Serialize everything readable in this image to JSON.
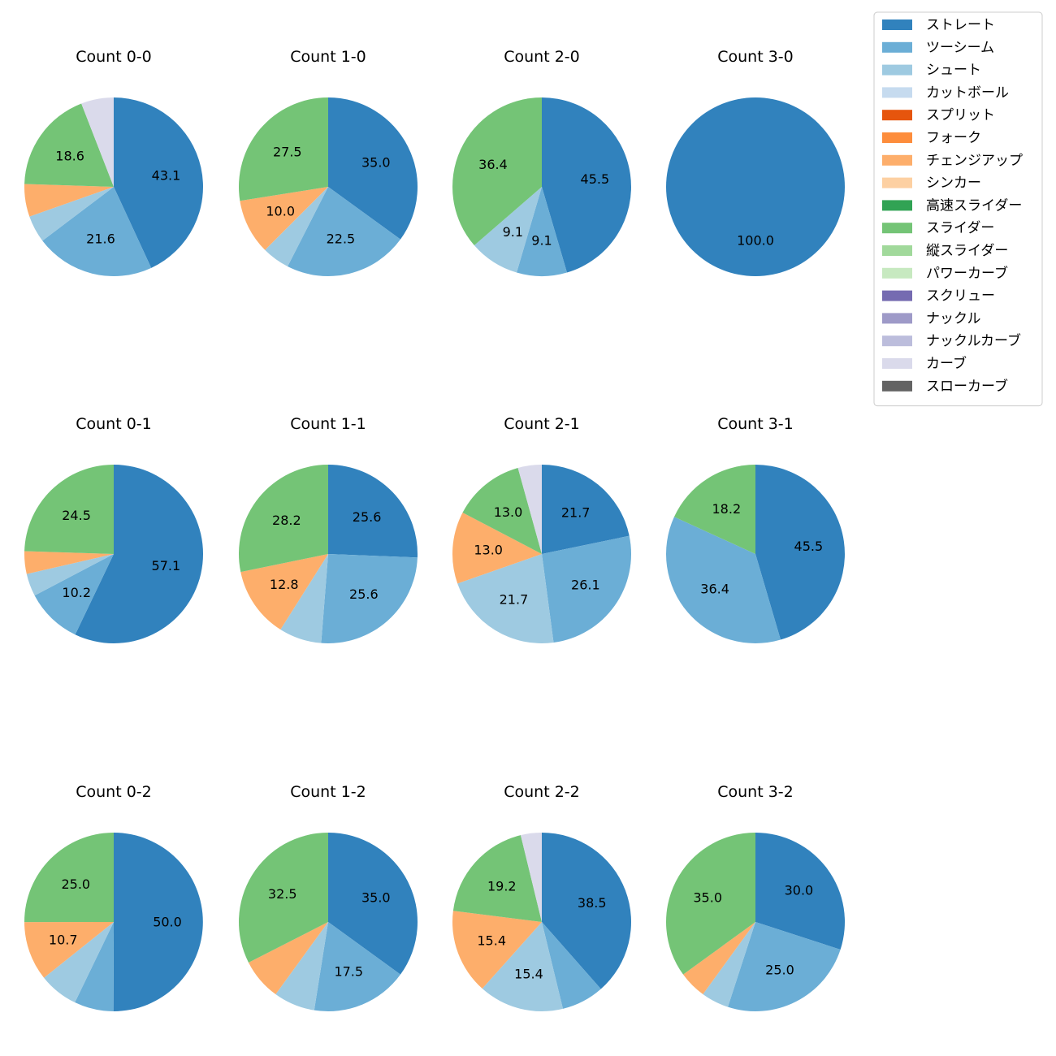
{
  "chart_data": {
    "type": "pie",
    "title": "",
    "legend": {
      "placement": "top-right",
      "items": [
        {
          "name": "ストレート",
          "color": "#3182bd"
        },
        {
          "name": "ツーシーム",
          "color": "#6baed6"
        },
        {
          "name": "シュート",
          "color": "#9ecae1"
        },
        {
          "name": "カットボール",
          "color": "#c6dbef"
        },
        {
          "name": "スプリット",
          "color": "#e6550d"
        },
        {
          "name": "フォーク",
          "color": "#fd8d3c"
        },
        {
          "name": "チェンジアップ",
          "color": "#fdae6b"
        },
        {
          "name": "シンカー",
          "color": "#fdd0a2"
        },
        {
          "name": "高速スライダー",
          "color": "#31a354"
        },
        {
          "name": "スライダー",
          "color": "#74c476"
        },
        {
          "name": "縦スライダー",
          "color": "#a1d99b"
        },
        {
          "name": "パワーカーブ",
          "color": "#c7e9c0"
        },
        {
          "name": "スクリュー",
          "color": "#756bb1"
        },
        {
          "name": "ナックル",
          "color": "#9e9ac8"
        },
        {
          "name": "ナックルカーブ",
          "color": "#bcbddc"
        },
        {
          "name": "カーブ",
          "color": "#dadaeb"
        },
        {
          "name": "スローカーブ",
          "color": "#636363"
        }
      ]
    },
    "pies": [
      {
        "title": "Count 0-0",
        "slices": [
          {
            "category": "ストレート",
            "value": 43.1,
            "label": "43.1"
          },
          {
            "category": "ツーシーム",
            "value": 21.6,
            "label": "21.6"
          },
          {
            "category": "シュート",
            "value": 4.9
          },
          {
            "category": "チェンジアップ",
            "value": 5.9
          },
          {
            "category": "スライダー",
            "value": 18.6,
            "label": "18.6"
          },
          {
            "category": "カーブ",
            "value": 5.9
          }
        ]
      },
      {
        "title": "Count 1-0",
        "slices": [
          {
            "category": "ストレート",
            "value": 35.0,
            "label": "35.0"
          },
          {
            "category": "ツーシーム",
            "value": 22.5,
            "label": "22.5"
          },
          {
            "category": "シュート",
            "value": 5.0
          },
          {
            "category": "チェンジアップ",
            "value": 10.0,
            "label": "10.0"
          },
          {
            "category": "スライダー",
            "value": 27.5,
            "label": "27.5"
          }
        ]
      },
      {
        "title": "Count 2-0",
        "slices": [
          {
            "category": "ストレート",
            "value": 45.5,
            "label": "45.5"
          },
          {
            "category": "ツーシーム",
            "value": 9.1,
            "label": "9.1"
          },
          {
            "category": "シュート",
            "value": 9.1,
            "label": "9.1"
          },
          {
            "category": "スライダー",
            "value": 36.4,
            "label": "36.4"
          }
        ]
      },
      {
        "title": "Count 3-0",
        "slices": [
          {
            "category": "ストレート",
            "value": 100.0,
            "label": "100.0"
          }
        ]
      },
      {
        "title": "Count 0-1",
        "slices": [
          {
            "category": "ストレート",
            "value": 57.1,
            "label": "57.1"
          },
          {
            "category": "ツーシーム",
            "value": 10.2,
            "label": "10.2"
          },
          {
            "category": "シュート",
            "value": 4.1
          },
          {
            "category": "チェンジアップ",
            "value": 4.1
          },
          {
            "category": "スライダー",
            "value": 24.5,
            "label": "24.5"
          }
        ]
      },
      {
        "title": "Count 1-1",
        "slices": [
          {
            "category": "ストレート",
            "value": 25.6,
            "label": "25.6"
          },
          {
            "category": "ツーシーム",
            "value": 25.6,
            "label": "25.6"
          },
          {
            "category": "シュート",
            "value": 7.7
          },
          {
            "category": "チェンジアップ",
            "value": 12.8,
            "label": "12.8"
          },
          {
            "category": "スライダー",
            "value": 28.2,
            "label": "28.2"
          }
        ]
      },
      {
        "title": "Count 2-1",
        "slices": [
          {
            "category": "ストレート",
            "value": 21.7,
            "label": "21.7"
          },
          {
            "category": "ツーシーム",
            "value": 26.1,
            "label": "26.1"
          },
          {
            "category": "シュート",
            "value": 21.7,
            "label": "21.7"
          },
          {
            "category": "チェンジアップ",
            "value": 13.0,
            "label": "13.0"
          },
          {
            "category": "スライダー",
            "value": 13.0,
            "label": "13.0"
          },
          {
            "category": "カーブ",
            "value": 4.3
          }
        ]
      },
      {
        "title": "Count 3-1",
        "slices": [
          {
            "category": "ストレート",
            "value": 45.5,
            "label": "45.5"
          },
          {
            "category": "ツーシーム",
            "value": 36.4,
            "label": "36.4"
          },
          {
            "category": "スライダー",
            "value": 18.2,
            "label": "18.2"
          }
        ]
      },
      {
        "title": "Count 0-2",
        "slices": [
          {
            "category": "ストレート",
            "value": 50.0,
            "label": "50.0"
          },
          {
            "category": "ツーシーム",
            "value": 7.1
          },
          {
            "category": "シュート",
            "value": 7.1
          },
          {
            "category": "チェンジアップ",
            "value": 10.7,
            "label": "10.7"
          },
          {
            "category": "スライダー",
            "value": 25.0,
            "label": "25.0"
          }
        ]
      },
      {
        "title": "Count 1-2",
        "slices": [
          {
            "category": "ストレート",
            "value": 35.0,
            "label": "35.0"
          },
          {
            "category": "ツーシーム",
            "value": 17.5,
            "label": "17.5"
          },
          {
            "category": "シュート",
            "value": 7.5
          },
          {
            "category": "チェンジアップ",
            "value": 7.5
          },
          {
            "category": "スライダー",
            "value": 32.5,
            "label": "32.5"
          }
        ]
      },
      {
        "title": "Count 2-2",
        "slices": [
          {
            "category": "ストレート",
            "value": 38.5,
            "label": "38.5"
          },
          {
            "category": "ツーシーム",
            "value": 7.7
          },
          {
            "category": "シュート",
            "value": 15.4,
            "label": "15.4"
          },
          {
            "category": "チェンジアップ",
            "value": 15.4,
            "label": "15.4"
          },
          {
            "category": "スライダー",
            "value": 19.2,
            "label": "19.2"
          },
          {
            "category": "カーブ",
            "value": 3.8
          }
        ]
      },
      {
        "title": "Count 3-2",
        "slices": [
          {
            "category": "ストレート",
            "value": 30.0,
            "label": "30.0"
          },
          {
            "category": "ツーシーム",
            "value": 25.0,
            "label": "25.0"
          },
          {
            "category": "シュート",
            "value": 5.0
          },
          {
            "category": "チェンジアップ",
            "value": 5.0
          },
          {
            "category": "スライダー",
            "value": 35.0,
            "label": "35.0"
          }
        ]
      }
    ]
  }
}
